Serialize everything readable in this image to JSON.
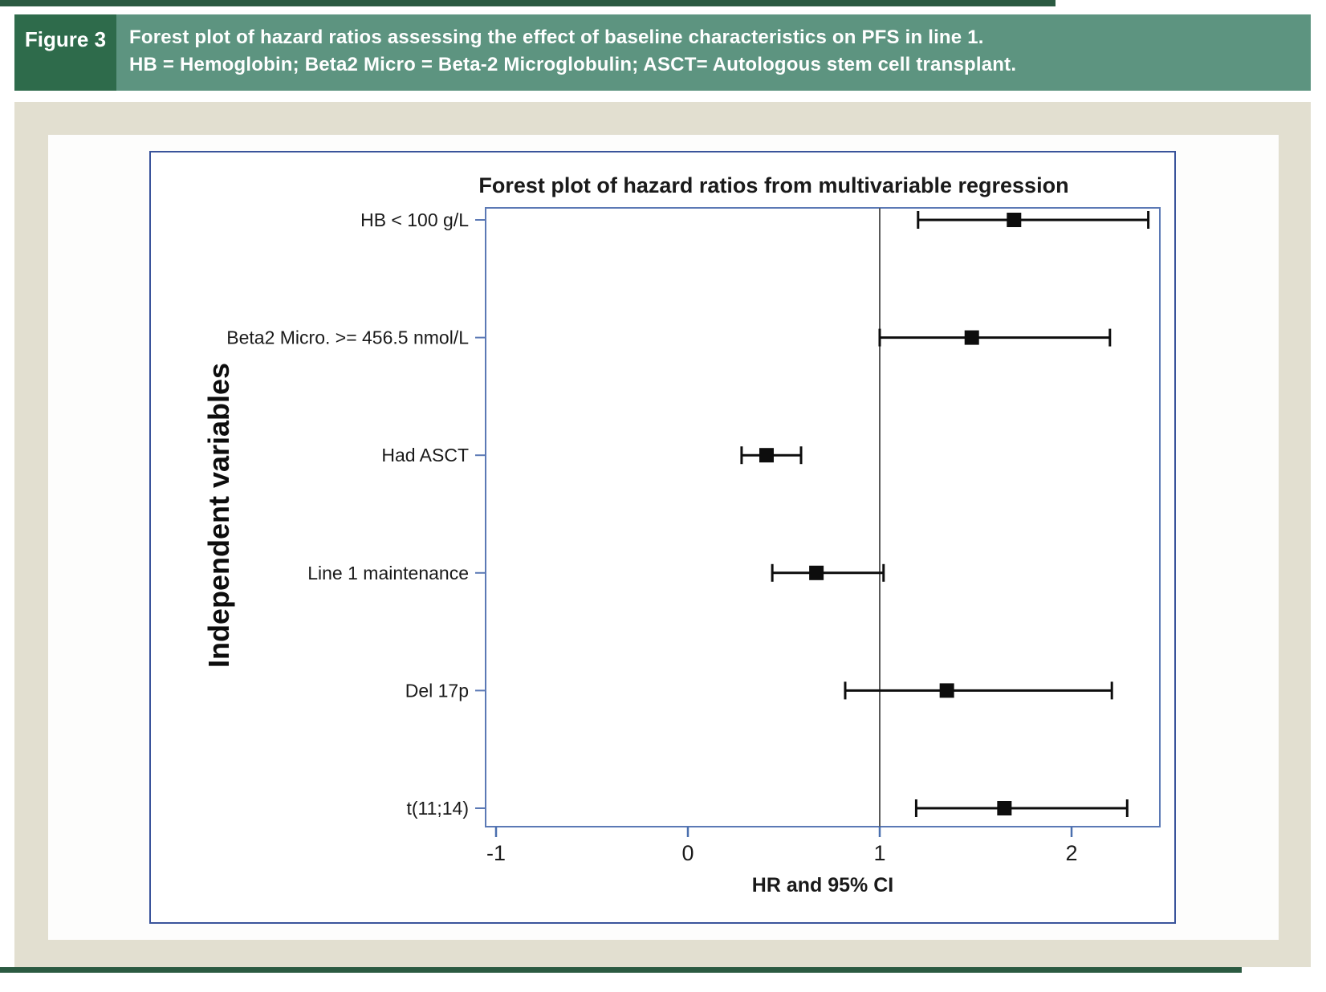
{
  "figure_header": {
    "label": "Figure 3",
    "title_line1": "Forest plot of hazard ratios assessing the effect of baseline characteristics on PFS in line 1.",
    "title_line2": "HB = Hemoglobin; Beta2 Micro = Beta-2 Microglobulin; ASCT= Autologous stem cell transplant."
  },
  "colors": {
    "top_bottom_line_green": "#2b5a41",
    "header_bar_green": "#5d9480",
    "figure_label_green": "#2e6b4b",
    "panel_beige": "#e2dfd0",
    "chart_border_blue": "#3a549b",
    "axes_border_blue": "#5b79b5",
    "tick_blue": "#4a6fae",
    "reference_line_gray": "#595959",
    "data_black": "#0d0d0d",
    "chart_text_black": "#1a1a1a",
    "header_text_white": "#ffffff"
  },
  "chart_data": {
    "type": "forest",
    "title": "Forest plot of hazard ratios from multivariable regression",
    "xlabel": "HR and 95% CI",
    "ylabel": "Independent variables",
    "xticks": [
      -1,
      0,
      1,
      2
    ],
    "xtick_labels": [
      "-1",
      "0",
      "1",
      "2"
    ],
    "xlim": [
      -1.05,
      2.46
    ],
    "reference_line_x": 1,
    "grid": false,
    "legend": false,
    "rows": [
      {
        "label": "HB < 100 g/L",
        "hr": 1.7,
        "ci_low": 1.2,
        "ci_high": 2.4
      },
      {
        "label": "Beta2 Micro. >= 456.5 nmol/L",
        "hr": 1.48,
        "ci_low": 1.0,
        "ci_high": 2.2
      },
      {
        "label": "Had ASCT",
        "hr": 0.41,
        "ci_low": 0.28,
        "ci_high": 0.59
      },
      {
        "label": "Line 1 maintenance",
        "hr": 0.67,
        "ci_low": 0.44,
        "ci_high": 1.02
      },
      {
        "label": "Del 17p",
        "hr": 1.35,
        "ci_low": 0.82,
        "ci_high": 2.21
      },
      {
        "label": "t(11;14)",
        "hr": 1.65,
        "ci_low": 1.19,
        "ci_high": 2.29
      }
    ]
  }
}
